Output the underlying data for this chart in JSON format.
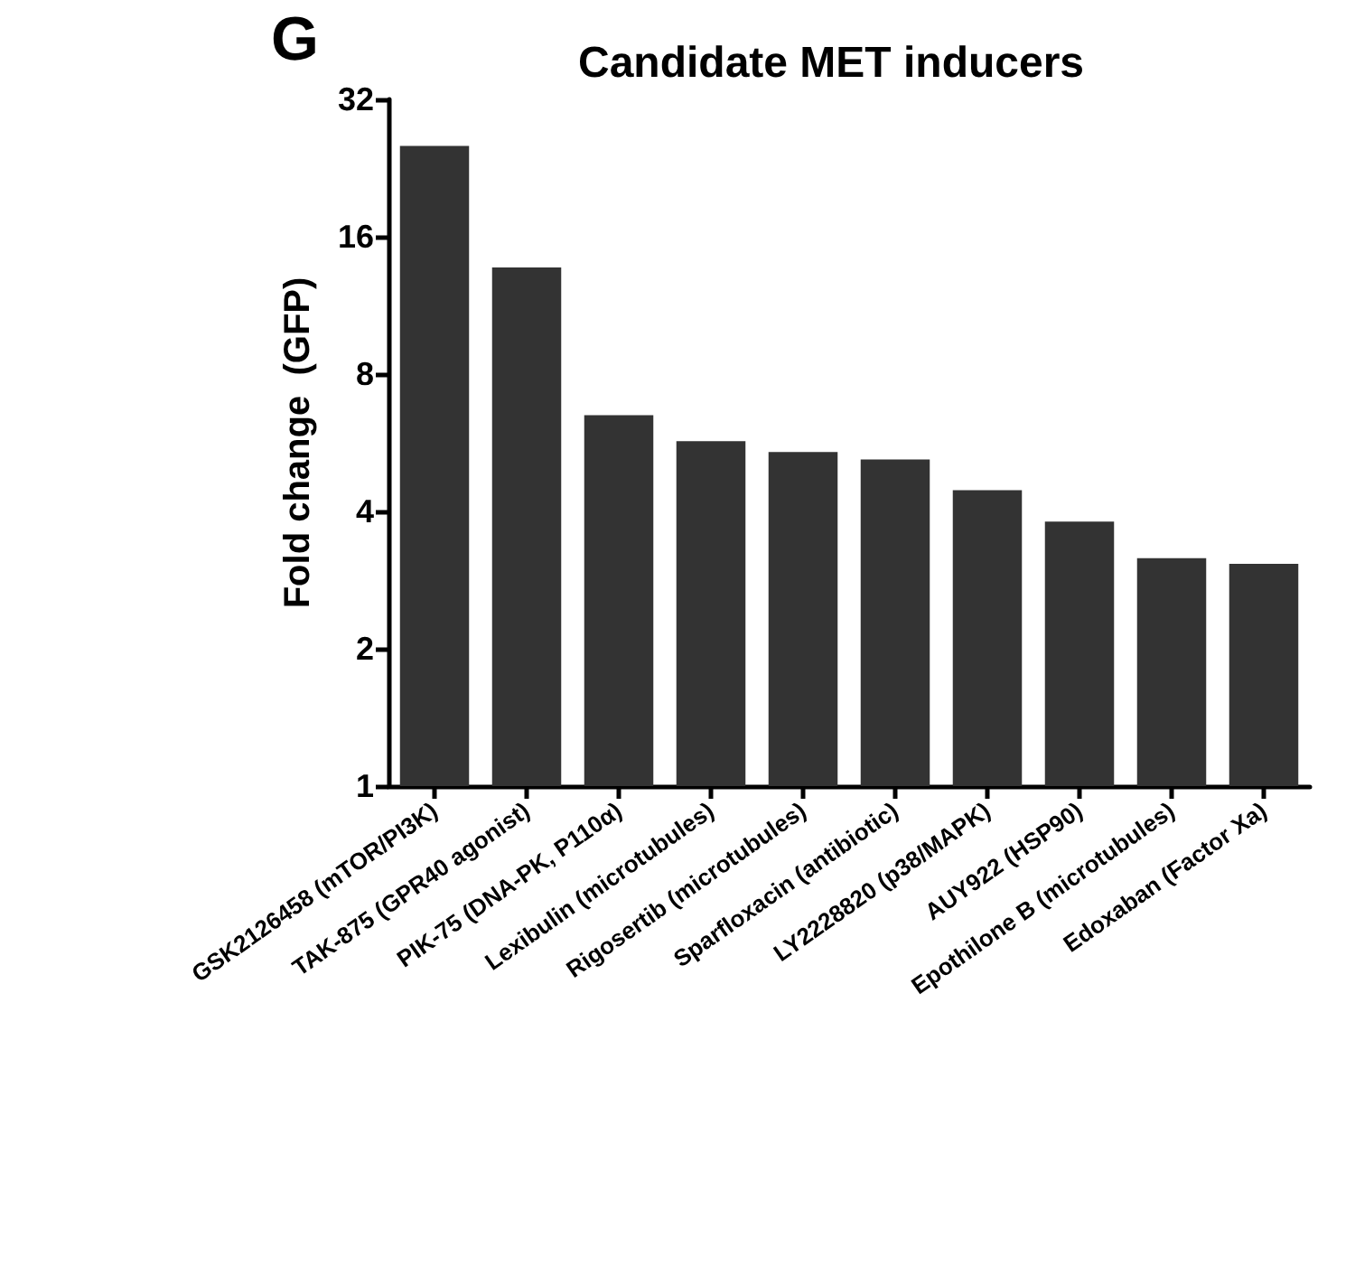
{
  "chart_data": {
    "type": "bar",
    "title": "Candidate MET inducers",
    "ylabel": "Fold change  (GFP)",
    "annotations": [
      "G"
    ],
    "categories": [
      "GSK2126458 (mTOR/PI3K)",
      "TAK-875 (GPR40 agonist)",
      "PIK-75 (DNA-PK, P110α)",
      "Lexibulin (microtubules)",
      "Rigosertib (microtubules)",
      "Sparfloxacin (antibiotic)",
      "LY2228820 (p38/MAPK)",
      "AUY922 (HSP90)",
      "Epothilone B (microtubules)",
      "Edoxaban (Factor Xa)"
    ],
    "values": [
      25.3,
      13.7,
      6.5,
      5.7,
      5.4,
      5.2,
      4.45,
      3.8,
      3.16,
      3.07
    ],
    "color": "#333333",
    "log": "y",
    "ylim": [
      1,
      32
    ],
    "yticks": [
      1,
      2,
      4,
      8,
      16,
      32
    ]
  }
}
